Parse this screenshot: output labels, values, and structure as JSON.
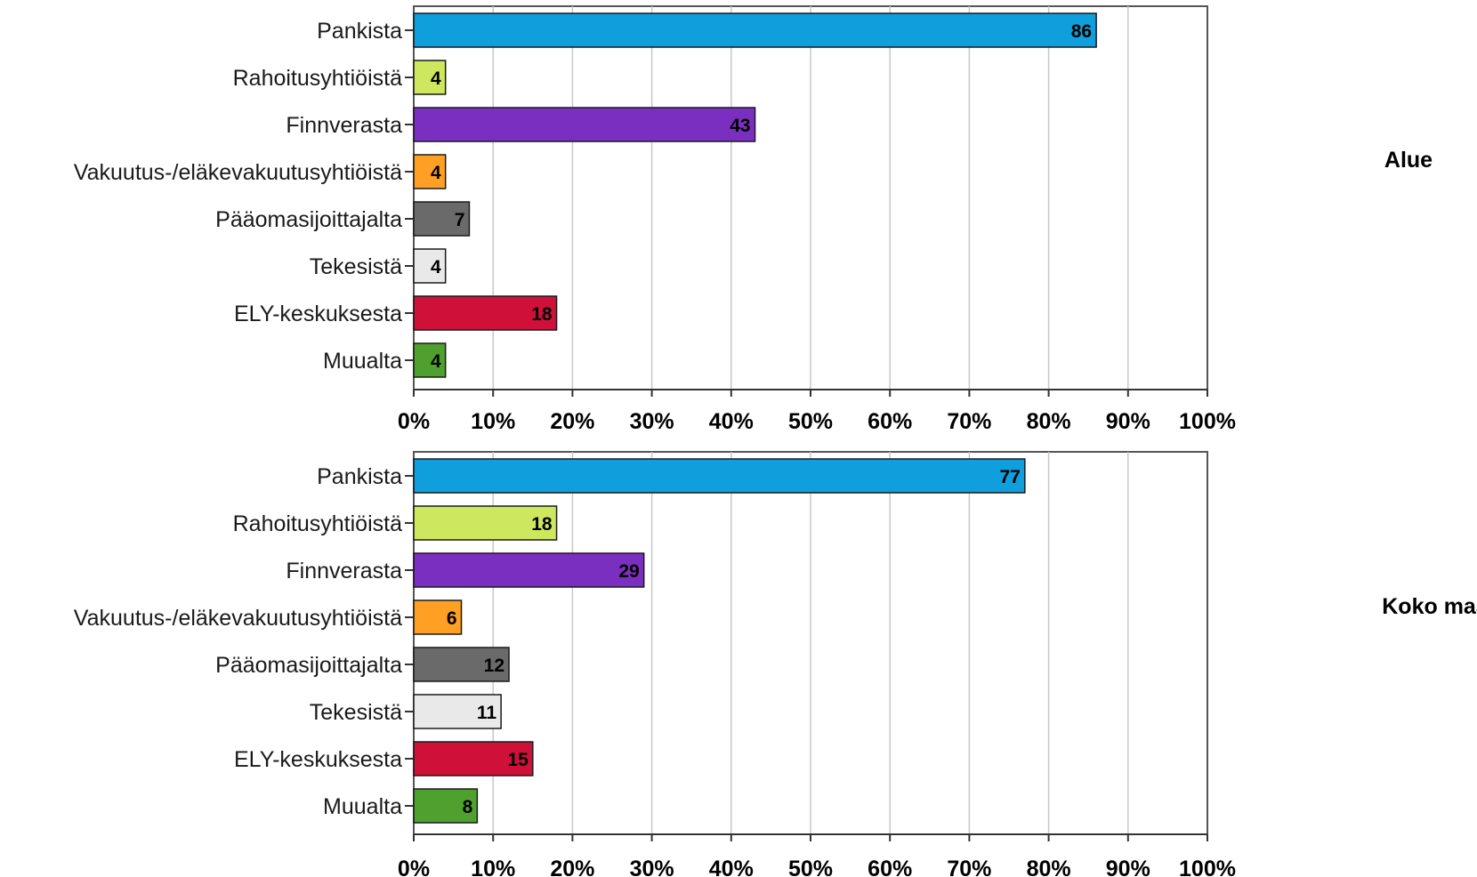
{
  "chart_data": {
    "type": "bar",
    "orientation": "horizontal",
    "value_unit": "%",
    "xlim": [
      0,
      100
    ],
    "ticks": [
      0,
      10,
      20,
      30,
      40,
      50,
      60,
      70,
      80,
      90,
      100
    ],
    "tick_labels": [
      "0%",
      "10%",
      "20%",
      "30%",
      "40%",
      "50%",
      "60%",
      "70%",
      "80%",
      "90%",
      "100%"
    ],
    "grid": true,
    "categories": [
      "Pankista",
      "Rahoitusyhtiöistä",
      "Finnverasta",
      "Vakuutus-/eläkevakuutusyhtiöistä",
      "Pääomasijoittajalta",
      "Tekesistä",
      "ELY-keskuksesta",
      "Muualta"
    ],
    "bar_colors": [
      "#0f9fdc",
      "#cde85e",
      "#7b2fc0",
      "#ffa024",
      "#6a6a6a",
      "#e9e9e9",
      "#cf1139",
      "#4ea12f"
    ],
    "panels": [
      {
        "label": "Alue",
        "values": [
          86,
          4,
          43,
          4,
          7,
          4,
          18,
          4
        ]
      },
      {
        "label": "Koko maa",
        "values": [
          77,
          18,
          29,
          6,
          12,
          11,
          15,
          8
        ]
      }
    ]
  }
}
